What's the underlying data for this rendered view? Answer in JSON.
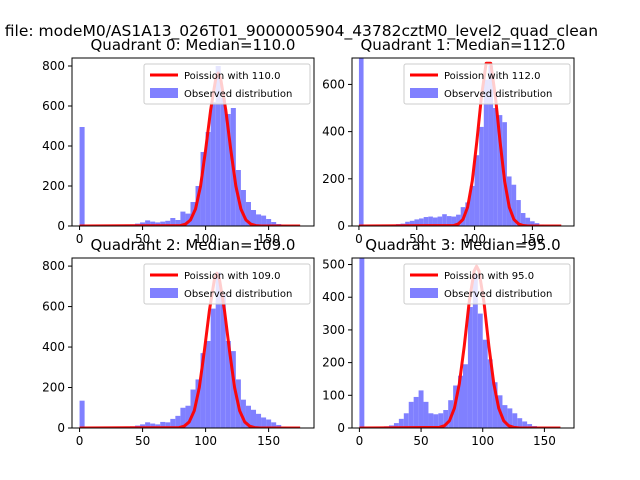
{
  "suptitle": "n file: modeM0/AS1A13_026T01_9000005904_43782cztM0_level2_quad_clean",
  "legend": {
    "line_prefix": "Poission with ",
    "hist_label": "Observed distribution"
  },
  "colors": {
    "line": "#ff0000",
    "hist": "#8080ff"
  },
  "chart_data": [
    {
      "type": "bar",
      "title": "Quadrant 0: Median=110.0",
      "mu": 110.0,
      "line_label": "Poission with 110.0",
      "xlim": [
        -6,
        186
      ],
      "ylim": [
        0,
        840
      ],
      "xticks": [
        0,
        50,
        100,
        150
      ],
      "yticks": [
        0,
        200,
        400,
        600,
        800
      ],
      "bin_width": 4.0,
      "hist": [
        [
          0,
          495
        ],
        [
          4,
          2
        ],
        [
          8,
          2
        ],
        [
          12,
          2
        ],
        [
          16,
          3
        ],
        [
          20,
          3
        ],
        [
          24,
          4
        ],
        [
          28,
          4
        ],
        [
          32,
          5
        ],
        [
          36,
          6
        ],
        [
          40,
          8
        ],
        [
          44,
          12
        ],
        [
          48,
          18
        ],
        [
          52,
          28
        ],
        [
          56,
          22
        ],
        [
          60,
          18
        ],
        [
          64,
          22
        ],
        [
          68,
          26
        ],
        [
          72,
          40
        ],
        [
          76,
          30
        ],
        [
          80,
          72
        ],
        [
          84,
          62
        ],
        [
          88,
          120
        ],
        [
          92,
          200
        ],
        [
          96,
          370
        ],
        [
          100,
          470
        ],
        [
          104,
          620
        ],
        [
          108,
          800
        ],
        [
          112,
          640
        ],
        [
          116,
          560
        ],
        [
          120,
          590
        ],
        [
          124,
          280
        ],
        [
          128,
          180
        ],
        [
          132,
          120
        ],
        [
          136,
          80
        ],
        [
          140,
          58
        ],
        [
          144,
          52
        ],
        [
          148,
          35
        ],
        [
          152,
          20
        ],
        [
          156,
          10
        ],
        [
          160,
          5
        ],
        [
          164,
          3
        ],
        [
          168,
          2
        ],
        [
          172,
          1
        ]
      ],
      "line_x": [
        0,
        80,
        84,
        88,
        92,
        96,
        100,
        104,
        108,
        110,
        112,
        116,
        120,
        124,
        128,
        132,
        136,
        140,
        144,
        150,
        175
      ],
      "line_y": [
        0,
        2,
        9,
        30,
        85,
        200,
        380,
        580,
        735,
        765,
        735,
        580,
        380,
        200,
        85,
        30,
        9,
        2,
        0,
        0,
        0
      ]
    },
    {
      "type": "bar",
      "title": "Quadrant 1: Median=112.0",
      "mu": 112.0,
      "line_label": "Poission with 112.0",
      "xlim": [
        -6,
        186
      ],
      "ylim": [
        0,
        712
      ],
      "xticks": [
        0,
        50,
        100,
        150
      ],
      "yticks": [
        0,
        200,
        400,
        600
      ],
      "bin_width": 4.0,
      "hist": [
        [
          0,
          712
        ],
        [
          4,
          2
        ],
        [
          8,
          2
        ],
        [
          12,
          2
        ],
        [
          16,
          2
        ],
        [
          20,
          3
        ],
        [
          24,
          3
        ],
        [
          28,
          5
        ],
        [
          32,
          8
        ],
        [
          36,
          10
        ],
        [
          40,
          18
        ],
        [
          44,
          22
        ],
        [
          48,
          28
        ],
        [
          52,
          32
        ],
        [
          56,
          38
        ],
        [
          60,
          40
        ],
        [
          64,
          36
        ],
        [
          68,
          40
        ],
        [
          72,
          50
        ],
        [
          76,
          42
        ],
        [
          80,
          40
        ],
        [
          84,
          48
        ],
        [
          88,
          80
        ],
        [
          92,
          100
        ],
        [
          96,
          170
        ],
        [
          100,
          300
        ],
        [
          104,
          420
        ],
        [
          108,
          620
        ],
        [
          112,
          680
        ],
        [
          116,
          500
        ],
        [
          120,
          470
        ],
        [
          124,
          440
        ],
        [
          128,
          210
        ],
        [
          132,
          175
        ],
        [
          136,
          110
        ],
        [
          140,
          55
        ],
        [
          144,
          35
        ],
        [
          148,
          20
        ],
        [
          152,
          12
        ],
        [
          156,
          6
        ],
        [
          160,
          3
        ],
        [
          164,
          2
        ],
        [
          168,
          2
        ],
        [
          172,
          1
        ]
      ],
      "line_x": [
        0,
        82,
        86,
        90,
        94,
        98,
        102,
        106,
        110,
        112,
        114,
        118,
        122,
        126,
        130,
        134,
        138,
        142,
        146,
        152,
        175
      ],
      "line_y": [
        0,
        2,
        9,
        28,
        80,
        190,
        360,
        550,
        690,
        690,
        690,
        550,
        360,
        190,
        80,
        28,
        9,
        2,
        0,
        0,
        0
      ]
    },
    {
      "type": "bar",
      "title": "Quadrant 2: Median=109.0",
      "mu": 109.0,
      "line_label": "Poission with 109.0",
      "xlim": [
        -6,
        186
      ],
      "ylim": [
        0,
        840
      ],
      "xticks": [
        0,
        50,
        100,
        150
      ],
      "yticks": [
        0,
        200,
        400,
        600,
        800
      ],
      "bin_width": 4.0,
      "hist": [
        [
          0,
          135
        ],
        [
          4,
          2
        ],
        [
          8,
          2
        ],
        [
          12,
          2
        ],
        [
          16,
          2
        ],
        [
          20,
          2
        ],
        [
          24,
          3
        ],
        [
          28,
          4
        ],
        [
          32,
          5
        ],
        [
          36,
          6
        ],
        [
          40,
          8
        ],
        [
          44,
          12
        ],
        [
          48,
          18
        ],
        [
          52,
          28
        ],
        [
          56,
          22
        ],
        [
          60,
          18
        ],
        [
          64,
          30
        ],
        [
          68,
          28
        ],
        [
          72,
          45
        ],
        [
          76,
          60
        ],
        [
          80,
          100
        ],
        [
          84,
          110
        ],
        [
          88,
          190
        ],
        [
          92,
          240
        ],
        [
          96,
          370
        ],
        [
          100,
          430
        ],
        [
          104,
          590
        ],
        [
          108,
          770
        ],
        [
          112,
          660
        ],
        [
          116,
          430
        ],
        [
          120,
          380
        ],
        [
          124,
          240
        ],
        [
          128,
          140
        ],
        [
          132,
          110
        ],
        [
          136,
          90
        ],
        [
          140,
          70
        ],
        [
          144,
          52
        ],
        [
          148,
          42
        ],
        [
          152,
          28
        ],
        [
          156,
          15
        ],
        [
          160,
          6
        ],
        [
          164,
          3
        ],
        [
          168,
          2
        ],
        [
          172,
          1
        ]
      ],
      "line_x": [
        0,
        79,
        83,
        87,
        91,
        95,
        99,
        103,
        107,
        109,
        111,
        115,
        119,
        123,
        127,
        131,
        135,
        139,
        143,
        150,
        175
      ],
      "line_y": [
        0,
        2,
        9,
        30,
        85,
        200,
        380,
        580,
        735,
        765,
        735,
        580,
        380,
        200,
        85,
        30,
        9,
        2,
        0,
        0,
        0
      ]
    },
    {
      "type": "bar",
      "title": "Quadrant 3: Median=95.0",
      "mu": 95.0,
      "line_label": "Poission with 95.0",
      "xlim": [
        -6,
        174
      ],
      "ylim": [
        0,
        520
      ],
      "xticks": [
        0,
        50,
        100,
        150
      ],
      "yticks": [
        0,
        100,
        200,
        300,
        400,
        500
      ],
      "bin_width": 4.0,
      "hist": [
        [
          0,
          520
        ],
        [
          4,
          2
        ],
        [
          8,
          2
        ],
        [
          12,
          2
        ],
        [
          16,
          3
        ],
        [
          20,
          5
        ],
        [
          24,
          8
        ],
        [
          28,
          15
        ],
        [
          32,
          28
        ],
        [
          36,
          45
        ],
        [
          40,
          80
        ],
        [
          44,
          95
        ],
        [
          48,
          115
        ],
        [
          52,
          80
        ],
        [
          56,
          45
        ],
        [
          60,
          42
        ],
        [
          64,
          45
        ],
        [
          68,
          55
        ],
        [
          72,
          85
        ],
        [
          76,
          130
        ],
        [
          80,
          160
        ],
        [
          84,
          195
        ],
        [
          88,
          370
        ],
        [
          92,
          470
        ],
        [
          96,
          350
        ],
        [
          100,
          270
        ],
        [
          104,
          210
        ],
        [
          108,
          140
        ],
        [
          112,
          100
        ],
        [
          116,
          70
        ],
        [
          120,
          60
        ],
        [
          124,
          45
        ],
        [
          128,
          30
        ],
        [
          132,
          20
        ],
        [
          136,
          12
        ],
        [
          140,
          6
        ],
        [
          144,
          3
        ],
        [
          148,
          2
        ],
        [
          152,
          1
        ]
      ],
      "line_x": [
        0,
        65,
        69,
        73,
        77,
        81,
        85,
        89,
        93,
        95,
        97,
        101,
        105,
        109,
        113,
        117,
        121,
        125,
        130,
        140,
        163
      ],
      "line_y": [
        0,
        2,
        7,
        22,
        60,
        135,
        250,
        385,
        480,
        495,
        480,
        385,
        250,
        135,
        60,
        22,
        7,
        2,
        0,
        0,
        0
      ]
    }
  ]
}
